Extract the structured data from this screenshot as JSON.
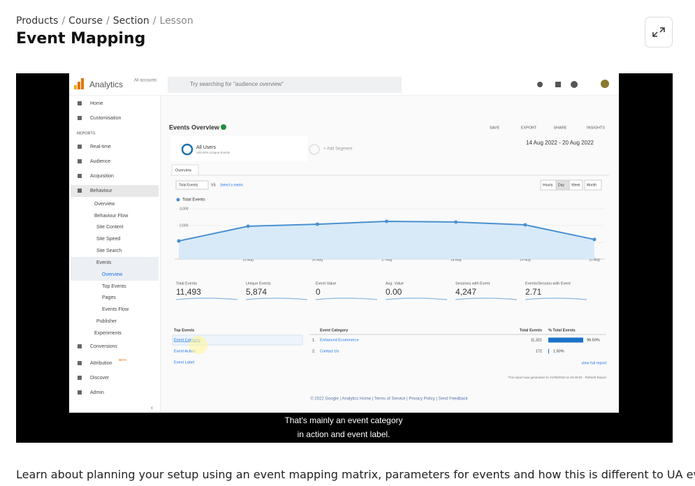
{
  "breadcrumb": [
    "Products",
    "Course",
    "Section",
    "Lesson"
  ],
  "title": "Event Mapping",
  "video": {
    "app_name": "Analytics",
    "account": "All accounts",
    "search_placeholder": "Try searching for \"audience overview\"",
    "sidebar": [
      "Home",
      "Customisation",
      "REPORTS",
      "Real-time",
      "Audience",
      "Acquisition",
      "Behaviour",
      "Overview",
      "Behaviour Flow",
      "Site Content",
      "Site Speed",
      "Site Search",
      "Events",
      "Overview",
      "Top Events",
      "Pages",
      "Events Flow",
      "Publisher",
      "Experiments",
      "Conversions",
      "Attribution",
      "Discover",
      "Admin"
    ],
    "beta": "BETA",
    "report_title": "Events Overview",
    "actions": [
      "SAVE",
      "EXPORT",
      "SHARE",
      "INSIGHTS"
    ],
    "segment": "All Users",
    "segment_sub": "100.00% Unique Events",
    "add_segment": "+ Add Segment",
    "date_range": "14 Aug 2022 - 20 Aug 2022",
    "tab": "Overview",
    "metric_select": "Total Events",
    "vs": "VS",
    "select_metric": "Select a metric",
    "granularity": [
      "Hourly",
      "Day",
      "Week",
      "Month"
    ],
    "metrics": [
      {
        "label": "Total Events",
        "value": "11,493"
      },
      {
        "label": "Unique Events",
        "value": "5,874"
      },
      {
        "label": "Event Value",
        "value": "0"
      },
      {
        "label": "Avg. Value",
        "value": "0.00"
      },
      {
        "label": "Sessions with Event",
        "value": "4,247"
      },
      {
        "label": "Events/Session with Event",
        "value": "2.71"
      }
    ],
    "top_events_title": "Top Events",
    "top_events": [
      "Event Category",
      "Event Action",
      "Event Label"
    ],
    "table_headers": [
      "Event Category",
      "Total Events",
      "% Total Events"
    ],
    "table_rows": [
      [
        "1.",
        "Enhanced Ecommerce",
        "11,321",
        "98.50%"
      ],
      [
        "2.",
        "Contact Us",
        "172",
        "1.50%"
      ]
    ],
    "view_full_report": "view full report",
    "generated": "This report was generated on 21/08/2022 at 19:45:50 · Refresh Report",
    "footer": "© 2022 Google | Analytics Home | Terms of Service | Privacy Policy | Send Feedback",
    "subtitles": [
      "That's mainly an event category",
      "in action and event label."
    ]
  },
  "chart_data": {
    "type": "line",
    "categories": [
      null,
      "15 Aug",
      "16 Aug",
      "17 Aug",
      "18 Aug",
      "19 Aug",
      "20 Aug"
    ],
    "series": [
      {
        "name": "Total Events",
        "color": "#4a90d0",
        "values": [
          1080,
          1960,
          2080,
          2250,
          2210,
          2040,
          1170
        ]
      }
    ],
    "ylim": [
      0,
      3000
    ],
    "yticks": [
      {
        "value": 1000,
        "label": "1,000"
      },
      {
        "value": 2000,
        "label": "2,000"
      },
      {
        "value": 3000,
        "label": "3,000"
      }
    ]
  },
  "description": "Learn about planning your setup using an event mapping matrix, parameters for events and how this is different to UA event"
}
